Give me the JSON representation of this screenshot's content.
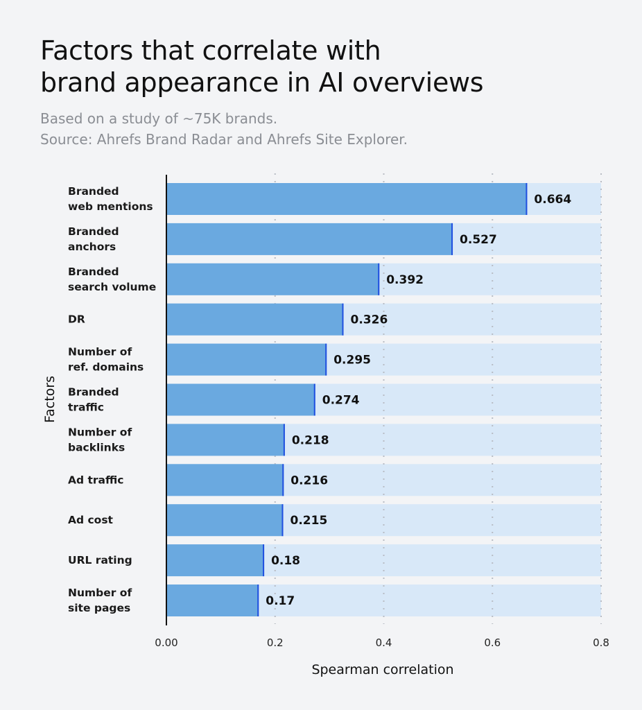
{
  "chart_data": {
    "type": "bar",
    "orientation": "horizontal",
    "title_lines": [
      "Factors that correlate with",
      "brand appearance in AI overviews"
    ],
    "subtitle_lines": [
      "Based on a study of ~75K brands.",
      "Source: Ahrefs Brand Radar and Ahrefs Site Explorer."
    ],
    "categories": [
      [
        "Branded",
        "web mentions"
      ],
      [
        "Branded",
        "anchors"
      ],
      [
        "Branded",
        "search volume"
      ],
      [
        "DR"
      ],
      [
        "Number of",
        "ref. domains"
      ],
      [
        "Branded",
        "traffic"
      ],
      [
        "Number of",
        "backlinks"
      ],
      [
        "Ad traffic"
      ],
      [
        "Ad cost"
      ],
      [
        "URL rating"
      ],
      [
        "Number of",
        "site pages"
      ]
    ],
    "values": [
      0.664,
      0.527,
      0.392,
      0.326,
      0.295,
      0.274,
      0.218,
      0.216,
      0.215,
      0.18,
      0.17
    ],
    "value_labels": [
      "0.664",
      "0.527",
      "0.392",
      "0.326",
      "0.295",
      "0.274",
      "0.218",
      "0.216",
      "0.215",
      "0.18",
      "0.17"
    ],
    "xlabel": "Spearman correlation",
    "ylabel": "Factors",
    "xlim": [
      0,
      0.8
    ],
    "xticks": [
      "0.00",
      "0.2",
      "0.4",
      "0.6",
      "0.8"
    ],
    "xtick_values": [
      0,
      0.2,
      0.4,
      0.6,
      0.8
    ],
    "grid": "vertical dotted",
    "colors": {
      "bar": "#6aa9e0",
      "track": "#d8e8f8",
      "bar_edge": "#1f4fe0",
      "background": "#f3f4f6"
    }
  }
}
